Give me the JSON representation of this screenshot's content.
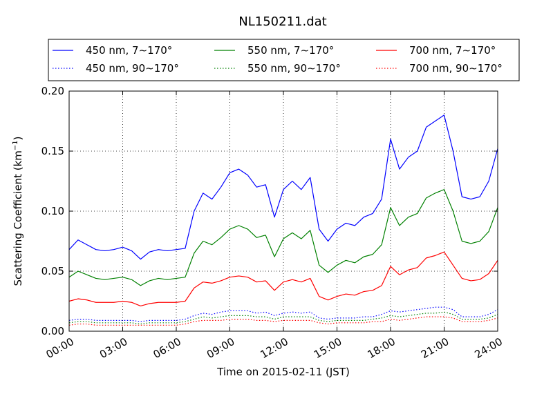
{
  "chart_data": {
    "type": "line",
    "title": "NL150211.dat",
    "xlabel": "Time on 2015-02-11 (JST)",
    "ylabel_main": "Scattering Coefficient (km",
    "ylabel_sup": "−1",
    "ylabel_end": ")",
    "xlim": [
      "00:00",
      "24:00"
    ],
    "ylim": [
      0.0,
      0.2
    ],
    "xticks": [
      "00:00",
      "03:00",
      "06:00",
      "09:00",
      "12:00",
      "15:00",
      "18:00",
      "21:00",
      "24:00"
    ],
    "yticks": [
      "0.00",
      "0.05",
      "0.10",
      "0.15",
      "0.20"
    ],
    "grid": true,
    "legend_position": "top, above axes, 3 columns",
    "x_times": [
      "00:00",
      "00:30",
      "01:00",
      "01:30",
      "02:00",
      "02:30",
      "03:00",
      "03:30",
      "04:00",
      "04:30",
      "05:00",
      "05:30",
      "06:00",
      "06:30",
      "07:00",
      "07:30",
      "08:00",
      "08:30",
      "09:00",
      "09:30",
      "10:00",
      "10:30",
      "11:00",
      "11:30",
      "12:00",
      "12:30",
      "13:00",
      "13:30",
      "14:00",
      "14:30",
      "15:00",
      "15:30",
      "16:00",
      "16:30",
      "17:00",
      "17:30",
      "18:00",
      "18:30",
      "19:00",
      "19:30",
      "20:00",
      "20:30",
      "21:00",
      "21:30",
      "22:00",
      "22:30",
      "23:00",
      "23:30",
      "24:00"
    ],
    "series": [
      {
        "name": "450 nm, 7∼170°",
        "color": "#0000ff",
        "style": "solid",
        "values": [
          0.068,
          0.076,
          0.072,
          0.068,
          0.067,
          0.068,
          0.07,
          0.067,
          0.06,
          0.066,
          0.068,
          0.067,
          0.068,
          0.069,
          0.1,
          0.115,
          0.11,
          0.12,
          0.132,
          0.135,
          0.13,
          0.12,
          0.122,
          0.095,
          0.118,
          0.125,
          0.118,
          0.128,
          0.085,
          0.075,
          0.085,
          0.09,
          0.088,
          0.095,
          0.098,
          0.11,
          0.16,
          0.135,
          0.145,
          0.15,
          0.17,
          0.175,
          0.18,
          0.15,
          0.112,
          0.11,
          0.112,
          0.125,
          0.152
        ]
      },
      {
        "name": "550 nm, 7∼170°",
        "color": "#008000",
        "style": "solid",
        "values": [
          0.045,
          0.05,
          0.047,
          0.044,
          0.043,
          0.044,
          0.045,
          0.043,
          0.038,
          0.042,
          0.044,
          0.043,
          0.044,
          0.045,
          0.065,
          0.075,
          0.072,
          0.078,
          0.085,
          0.088,
          0.085,
          0.078,
          0.08,
          0.062,
          0.077,
          0.082,
          0.077,
          0.084,
          0.055,
          0.049,
          0.055,
          0.059,
          0.057,
          0.062,
          0.064,
          0.072,
          0.103,
          0.088,
          0.095,
          0.098,
          0.111,
          0.115,
          0.118,
          0.1,
          0.075,
          0.073,
          0.075,
          0.083,
          0.103
        ]
      },
      {
        "name": "700 nm, 7∼170°",
        "color": "#ff0000",
        "style": "solid",
        "values": [
          0.025,
          0.027,
          0.026,
          0.024,
          0.024,
          0.024,
          0.025,
          0.024,
          0.021,
          0.023,
          0.024,
          0.024,
          0.024,
          0.025,
          0.036,
          0.041,
          0.04,
          0.042,
          0.045,
          0.046,
          0.045,
          0.041,
          0.042,
          0.034,
          0.041,
          0.043,
          0.041,
          0.044,
          0.029,
          0.026,
          0.029,
          0.031,
          0.03,
          0.033,
          0.034,
          0.038,
          0.054,
          0.047,
          0.051,
          0.053,
          0.061,
          0.063,
          0.066,
          0.055,
          0.044,
          0.042,
          0.043,
          0.048,
          0.059
        ]
      },
      {
        "name": "450 nm, 90∼170°",
        "color": "#0000ff",
        "style": "dotted",
        "values": [
          0.009,
          0.01,
          0.01,
          0.009,
          0.009,
          0.009,
          0.009,
          0.009,
          0.008,
          0.009,
          0.009,
          0.009,
          0.009,
          0.01,
          0.013,
          0.015,
          0.014,
          0.016,
          0.017,
          0.017,
          0.017,
          0.015,
          0.016,
          0.013,
          0.015,
          0.016,
          0.015,
          0.016,
          0.011,
          0.01,
          0.011,
          0.011,
          0.011,
          0.012,
          0.012,
          0.014,
          0.017,
          0.016,
          0.017,
          0.018,
          0.019,
          0.02,
          0.02,
          0.018,
          0.012,
          0.012,
          0.012,
          0.014,
          0.018
        ]
      },
      {
        "name": "550 nm, 90∼170°",
        "color": "#008000",
        "style": "dotted",
        "values": [
          0.007,
          0.008,
          0.008,
          0.007,
          0.007,
          0.007,
          0.007,
          0.007,
          0.006,
          0.007,
          0.007,
          0.007,
          0.007,
          0.008,
          0.01,
          0.012,
          0.011,
          0.012,
          0.013,
          0.013,
          0.013,
          0.012,
          0.012,
          0.01,
          0.012,
          0.012,
          0.012,
          0.012,
          0.009,
          0.008,
          0.009,
          0.009,
          0.009,
          0.009,
          0.01,
          0.011,
          0.013,
          0.012,
          0.013,
          0.014,
          0.015,
          0.015,
          0.016,
          0.014,
          0.01,
          0.01,
          0.01,
          0.011,
          0.014
        ]
      },
      {
        "name": "700 nm, 90∼170°",
        "color": "#ff0000",
        "style": "dotted",
        "values": [
          0.005,
          0.006,
          0.006,
          0.005,
          0.005,
          0.005,
          0.005,
          0.005,
          0.005,
          0.005,
          0.005,
          0.005,
          0.005,
          0.006,
          0.008,
          0.009,
          0.009,
          0.009,
          0.01,
          0.01,
          0.01,
          0.009,
          0.009,
          0.008,
          0.009,
          0.009,
          0.009,
          0.009,
          0.007,
          0.006,
          0.007,
          0.007,
          0.007,
          0.007,
          0.008,
          0.008,
          0.01,
          0.009,
          0.01,
          0.011,
          0.012,
          0.012,
          0.012,
          0.011,
          0.008,
          0.008,
          0.008,
          0.009,
          0.011
        ]
      }
    ]
  }
}
